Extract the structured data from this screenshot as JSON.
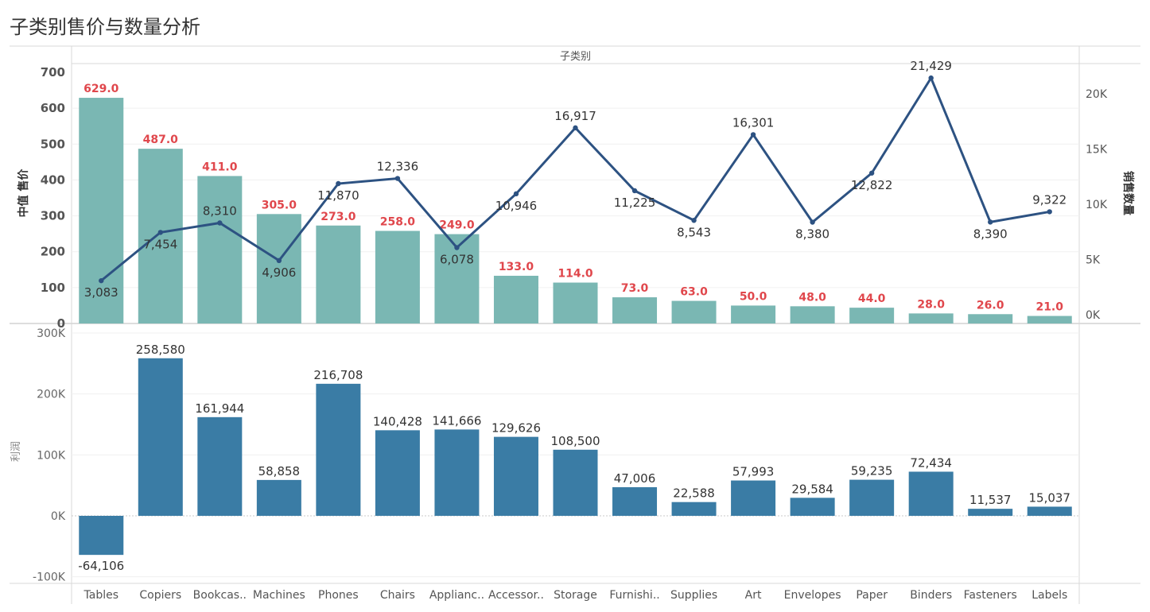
{
  "title": "子类别售价与数量分析",
  "chart_data": [
    {
      "type": "bar+line",
      "header": "子类别",
      "categories": [
        "Tables",
        "Copiers",
        "Bookcas..",
        "Machines",
        "Phones",
        "Chairs",
        "Applianc..",
        "Accessor..",
        "Storage",
        "Furnishi..",
        "Supplies",
        "Art",
        "Envelopes",
        "Paper",
        "Binders",
        "Fasteners",
        "Labels"
      ],
      "series": [
        {
          "name": "中值 售价",
          "axis": "left",
          "mark": "bar",
          "color": "#7ab7b3",
          "values": [
            629.0,
            487.0,
            411.0,
            305.0,
            273.0,
            258.0,
            249.0,
            133.0,
            114.0,
            73.0,
            63.0,
            50.0,
            48.0,
            44.0,
            28.0,
            26.0,
            21.0
          ],
          "labels": [
            "629.0",
            "487.0",
            "411.0",
            "305.0",
            "273.0",
            "258.0",
            "249.0",
            "133.0",
            "114.0",
            "73.0",
            "63.0",
            "50.0",
            "48.0",
            "44.0",
            "28.0",
            "26.0",
            "21.0"
          ]
        },
        {
          "name": "销售数量",
          "axis": "right",
          "mark": "line",
          "color": "#2d5282",
          "values": [
            3083,
            7454,
            8310,
            4906,
            11870,
            12336,
            6078,
            10946,
            16917,
            11225,
            8543,
            16301,
            8380,
            12822,
            21429,
            8390,
            9322
          ],
          "labels": [
            "3,083",
            "7,454",
            "8,310",
            "4,906",
            "11,870",
            "12,336",
            "6,078",
            "10,946",
            "16,917",
            "11,225",
            "8,543",
            "16,301",
            "8,380",
            "12,822",
            "21,429",
            "8,390",
            "9,322"
          ]
        }
      ],
      "ylabel_left": "中值 售价",
      "ylabel_right": "销售数量",
      "ylim_left": [
        0,
        700
      ],
      "yticks_left": [
        "700",
        "600",
        "500",
        "400",
        "300",
        "200",
        "100",
        "0"
      ],
      "ylim_right": [
        0,
        20000
      ],
      "yticks_right": [
        "20K",
        "15K",
        "10K",
        "5K",
        "0K"
      ],
      "grid": true
    },
    {
      "type": "bar",
      "categories": [
        "Tables",
        "Copiers",
        "Bookcas..",
        "Machines",
        "Phones",
        "Chairs",
        "Applianc..",
        "Accessor..",
        "Storage",
        "Furnishi..",
        "Supplies",
        "Art",
        "Envelopes",
        "Paper",
        "Binders",
        "Fasteners",
        "Labels"
      ],
      "series": [
        {
          "name": "利润",
          "color": "#3a7ca5",
          "values": [
            -64106,
            258580,
            161944,
            58858,
            216708,
            140428,
            141666,
            129626,
            108500,
            47006,
            22588,
            57993,
            29584,
            59235,
            72434,
            11537,
            15037
          ],
          "labels": [
            "-64,106",
            "258,580",
            "161,944",
            "58,858",
            "216,708",
            "140,428",
            "141,666",
            "129,626",
            "108,500",
            "47,006",
            "22,588",
            "57,993",
            "29,584",
            "59,235",
            "72,434",
            "11,537",
            "15,037"
          ]
        }
      ],
      "ylabel": "利润",
      "ylim": [
        -100000,
        300000
      ],
      "yticks": [
        "300K",
        "200K",
        "100K",
        "0K",
        "-100K"
      ],
      "grid": true
    }
  ]
}
